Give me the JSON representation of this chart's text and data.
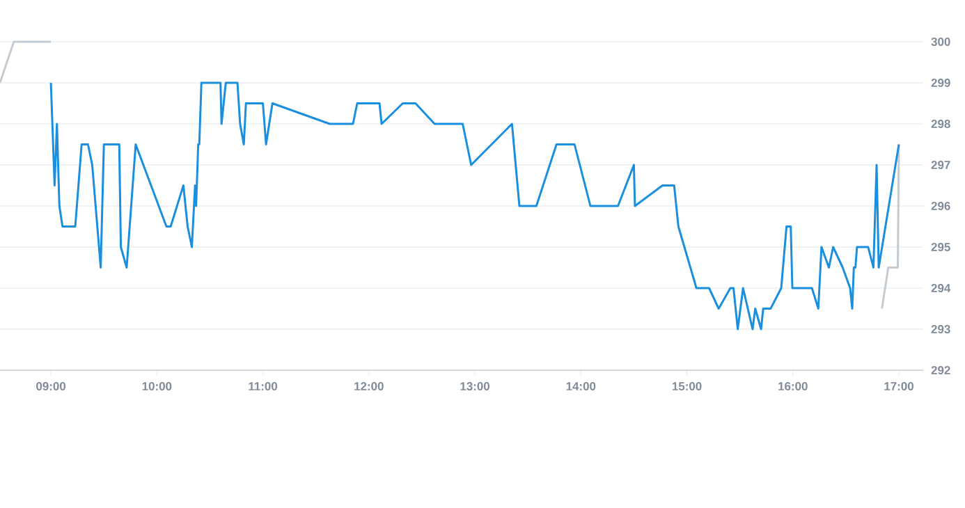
{
  "chart_data": {
    "type": "line",
    "xlim": [
      8.52,
      17.23
    ],
    "ylim": [
      292,
      300
    ],
    "xticks": [
      {
        "value": 9,
        "label": "09:00"
      },
      {
        "value": 10,
        "label": "10:00"
      },
      {
        "value": 11,
        "label": "11:00"
      },
      {
        "value": 12,
        "label": "12:00"
      },
      {
        "value": 13,
        "label": "13:00"
      },
      {
        "value": 14,
        "label": "14:00"
      },
      {
        "value": 15,
        "label": "15:00"
      },
      {
        "value": 16,
        "label": "16:00"
      },
      {
        "value": 17,
        "label": "17:00"
      }
    ],
    "yticks": [
      292,
      293,
      294,
      295,
      296,
      297,
      298,
      299,
      300
    ],
    "grid": "y",
    "series": [
      {
        "color": "#c3cbd3",
        "x": [
          8.52,
          8.65,
          9.0
        ],
        "values": [
          299,
          300,
          300
        ]
      },
      {
        "color": "#c3cbd3",
        "x": [
          16.84,
          16.9,
          16.99,
          17.0
        ],
        "values": [
          293.5,
          294.5,
          294.5,
          297.5
        ]
      },
      {
        "color": "#1a8fdd",
        "x": [
          9.0,
          9.035,
          9.057,
          9.08,
          9.11,
          9.23,
          9.29,
          9.35,
          9.39,
          9.47,
          9.5,
          9.645,
          9.66,
          9.715,
          9.8,
          10.09,
          10.13,
          10.25,
          10.29,
          10.33,
          10.36,
          10.37,
          10.39,
          10.4,
          10.42,
          10.6,
          10.61,
          10.65,
          10.76,
          10.785,
          10.82,
          10.84,
          11.0,
          11.03,
          11.09,
          11.63,
          11.85,
          11.89,
          12.1,
          12.12,
          12.32,
          12.44,
          12.62,
          12.885,
          12.965,
          13.35,
          13.42,
          13.58,
          13.77,
          13.94,
          14.09,
          14.35,
          14.5,
          14.51,
          14.77,
          14.88,
          14.92,
          15.09,
          15.21,
          15.3,
          15.41,
          15.44,
          15.48,
          15.53,
          15.62,
          15.645,
          15.7,
          15.72,
          15.79,
          15.89,
          15.94,
          15.98,
          15.995,
          16.18,
          16.24,
          16.27,
          16.34,
          16.38,
          16.47,
          16.54,
          16.56,
          16.575,
          16.59,
          16.605,
          16.71,
          16.76,
          16.79,
          16.81,
          17.0
        ],
        "values": [
          299,
          296.5,
          298,
          296,
          295.5,
          295.5,
          297.5,
          297.5,
          297,
          294.5,
          297.5,
          297.5,
          295,
          294.5,
          297.5,
          295.5,
          295.5,
          296.5,
          295.5,
          295,
          296.5,
          296,
          297.5,
          297.5,
          299,
          299,
          298,
          299,
          299,
          298,
          297.5,
          298.5,
          298.5,
          297.5,
          298.5,
          298,
          298,
          298.5,
          298.5,
          298,
          298.5,
          298.5,
          298,
          298,
          297,
          298,
          296,
          296,
          297.5,
          297.5,
          296,
          296,
          297,
          296,
          296.5,
          296.5,
          295.5,
          294,
          294,
          293.5,
          294,
          294,
          293,
          294,
          293,
          293.5,
          293,
          293.5,
          293.5,
          294,
          295.5,
          295.5,
          294,
          294,
          293.5,
          295,
          294.5,
          295,
          294.5,
          294,
          293.5,
          294.5,
          294.5,
          295,
          295,
          294.5,
          297,
          294.5,
          297.5
        ]
      }
    ]
  }
}
